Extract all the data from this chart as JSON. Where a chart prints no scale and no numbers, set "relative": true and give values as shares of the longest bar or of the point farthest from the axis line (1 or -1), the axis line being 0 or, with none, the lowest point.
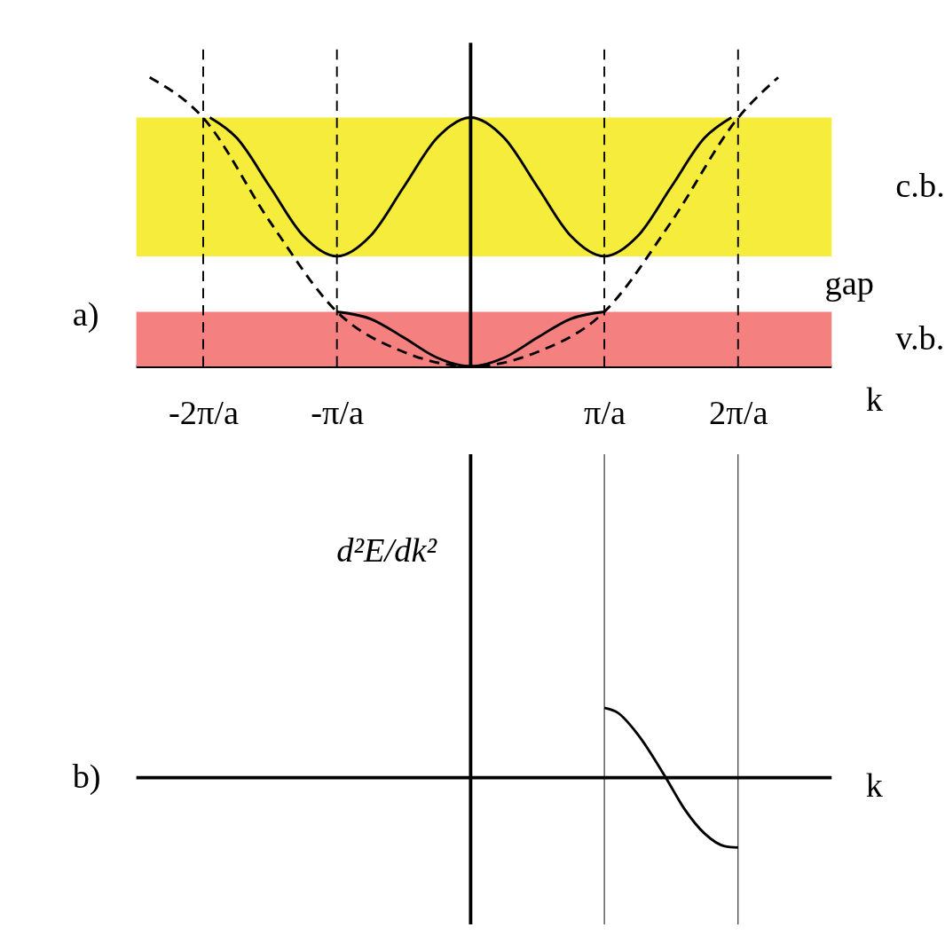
{
  "chart_data": [
    {
      "type": "line",
      "relative": true,
      "xlabel": "k",
      "xlim": [
        -2.5,
        2.7
      ],
      "xticks": [
        {
          "value": -2,
          "label": "-2π/a"
        },
        {
          "value": -1,
          "label": "-π/a"
        },
        {
          "value": 1,
          "label": "π/a"
        },
        {
          "value": 2,
          "label": "2π/a"
        }
      ],
      "tick_labels": "x",
      "grid": false,
      "series": [
        {
          "color": "#000000",
          "line_style": "solid",
          "x": [
            -1.95,
            -1.75,
            -1.5,
            -1.25,
            -1,
            -0.75,
            -0.5,
            -0.25,
            0,
            0.25,
            0.5,
            0.75,
            1,
            1.25,
            1.5,
            1.75,
            1.95
          ],
          "values": [
            0.861,
            0.791,
            0.621,
            0.451,
            0.381,
            0.451,
            0.621,
            0.791,
            0.861,
            0.791,
            0.621,
            0.451,
            0.381,
            0.451,
            0.621,
            0.791,
            0.861
          ]
        },
        {
          "color": "#000000",
          "line_style": "solid",
          "x": [
            -1,
            -0.75,
            -0.5,
            -0.25,
            0,
            0.25,
            0.5,
            0.75,
            1
          ],
          "values": [
            0.189,
            0.165,
            0.1,
            0.03,
            0,
            0.03,
            0.1,
            0.165,
            0.189
          ]
        },
        {
          "color": "#000000",
          "line_style": "dashed",
          "x": [
            -2.4,
            -2,
            -1.5,
            -1,
            -0.5,
            0,
            0.5,
            1,
            1.5,
            2,
            2.3
          ],
          "values": [
            1.0,
            0.86,
            0.5,
            0.189,
            0.05,
            0,
            0.05,
            0.189,
            0.5,
            0.86,
            1.0
          ]
        }
      ],
      "bands": [
        {
          "axis": "y",
          "from": 0.381,
          "to": 0.861,
          "label": "c.b.",
          "color": "#f5ec3c"
        },
        {
          "axis": "y",
          "from": 0,
          "to": 0.189,
          "label": "v.b.",
          "color": "#f58080"
        }
      ],
      "ref_lines": [
        {
          "axis": "x",
          "value": -2,
          "line_style": "dashed",
          "color": "#000000"
        },
        {
          "axis": "x",
          "value": -1,
          "line_style": "dashed",
          "color": "#000000"
        },
        {
          "axis": "x",
          "value": 1,
          "line_style": "dashed",
          "color": "#000000"
        },
        {
          "axis": "x",
          "value": 2,
          "line_style": "dashed",
          "color": "#000000"
        }
      ],
      "annotations": [
        "a)",
        "gap"
      ]
    },
    {
      "type": "line",
      "relative": true,
      "xlabel": "k",
      "ylabel": "d²E/dk²",
      "xlim": [
        -2.5,
        2.7
      ],
      "tick_labels": false,
      "series": [
        {
          "color": "#000000",
          "line_style": "solid",
          "x": [
            1,
            1.1,
            1.25,
            1.46,
            1.6,
            1.75,
            1.9,
            2
          ],
          "values": [
            1.0,
            0.93,
            0.62,
            0.0,
            -0.45,
            -0.8,
            -0.98,
            -1.0
          ]
        }
      ],
      "ref_lines": [
        {
          "axis": "x",
          "value": 1,
          "line_style": "solid",
          "color": "#000000"
        },
        {
          "axis": "x",
          "value": 2,
          "line_style": "solid",
          "color": "#000000"
        }
      ],
      "annotations": [
        "b)"
      ]
    }
  ]
}
